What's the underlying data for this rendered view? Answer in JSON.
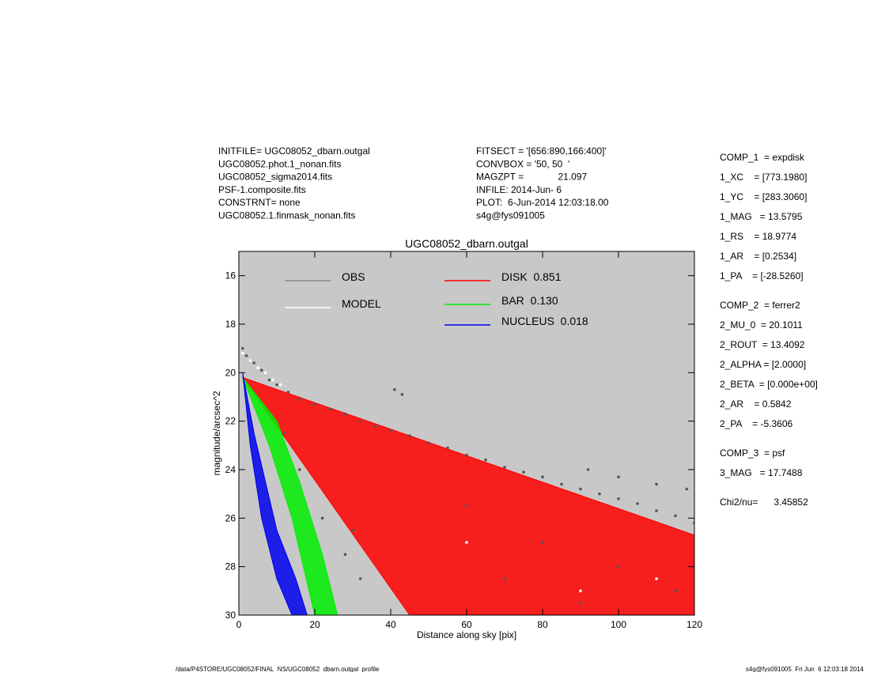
{
  "header": {
    "left": [
      "INITFILE= UGC08052_dbarn.outgal",
      "UGC08052.phot.1_nonan.fits",
      "UGC08052_sigma2014.fits",
      "PSF-1.composite.fits",
      "CONSTRNT= none",
      "UGC08052.1.finmask_nonan.fits"
    ],
    "middle": [
      "FITSECT = '[656:890,166:400]'",
      "CONVBOX = '50, 50  '",
      "MAGZPT =             21.097",
      "INFILE: 2014-Jun- 6",
      "PLOT:  6-Jun-2014 12:03:18.00",
      "s4g@fys091005"
    ]
  },
  "params": [
    [
      "COMP_1  = expdisk",
      "1_XC    = [773.1980]",
      "1_YC    = [283.3060]",
      "1_MAG   = 13.5795",
      "1_RS    = 18.9774",
      "1_AR    = [0.2534]",
      "1_PA    = [-28.5260]"
    ],
    [
      "COMP_2  = ferrer2",
      "2_MU_0  = 20.1011",
      "2_ROUT  = 13.4092",
      "2_ALPHA = [2.0000]",
      "2_BETA  = [0.000e+00]",
      "2_AR    = 0.5842",
      "2_PA    = -5.3606"
    ],
    [
      "COMP_3  = psf",
      "3_MAG   = 17.7488"
    ],
    [
      "Chi2/nu=      3.45852"
    ]
  ],
  "footer": {
    "left": "/data/P4STORE/UGC08052/FINAL_NS/UGC08052_dbarn.outgal_profile",
    "right": "s4g@fys091005  Fri Jun  6 12:03:18 2014"
  },
  "chart_data": {
    "type": "scatter",
    "title": "UGC08052_dbarn.outgal",
    "x_label": "Distance along sky [pix]",
    "y_label": "magnitude/arcsec^2",
    "xlim": [
      0,
      120
    ],
    "ylim": [
      30,
      15
    ],
    "xticks": [
      0,
      20,
      40,
      60,
      80,
      100,
      120
    ],
    "yticks": [
      16,
      18,
      20,
      22,
      24,
      26,
      28,
      30
    ],
    "background": "#c8c8c8",
    "series": [
      {
        "name": "OBS",
        "color": "#555555",
        "kind": "points",
        "x": [
          1,
          2,
          4,
          6,
          8,
          10,
          13,
          16,
          20,
          24,
          28,
          32,
          36,
          40,
          41,
          43,
          45,
          50,
          55,
          60,
          65,
          70,
          75,
          80,
          85,
          90,
          95,
          100,
          105,
          110,
          115,
          120,
          100,
          110,
          118,
          92,
          12,
          16,
          22,
          28,
          32,
          30,
          60,
          80,
          100,
          115,
          70,
          90
        ],
        "values": [
          19.0,
          19.3,
          19.6,
          19.9,
          20.3,
          20.5,
          20.8,
          21.1,
          21.3,
          21.5,
          21.7,
          22.0,
          22.2,
          22.4,
          20.7,
          20.9,
          22.6,
          22.9,
          23.1,
          23.4,
          23.6,
          23.9,
          24.1,
          24.3,
          24.6,
          24.8,
          25.0,
          25.2,
          25.4,
          25.7,
          25.9,
          26.2,
          24.3,
          24.6,
          24.8,
          24.0,
          22.5,
          24.0,
          26.0,
          27.5,
          28.5,
          26.5,
          25.5,
          27.0,
          28.0,
          29.0,
          28.5,
          29.5
        ]
      },
      {
        "name": "MODEL",
        "color": "#ffffff",
        "kind": "points",
        "x": [
          1,
          3,
          5,
          7,
          9,
          11,
          60,
          90,
          110
        ],
        "values": [
          19.2,
          19.5,
          19.8,
          20.0,
          20.3,
          20.5,
          27.0,
          29.0,
          28.5
        ]
      },
      {
        "name": "DISK  0.851",
        "color": "#ff0000",
        "kind": "area",
        "x": [
          1,
          120,
          120,
          45
        ],
        "values": [
          20.2,
          26.7,
          30,
          30
        ]
      },
      {
        "name": "BAR  0.130",
        "color": "#00ee00",
        "kind": "area",
        "x": [
          1,
          10,
          16,
          22,
          26,
          20,
          14,
          8
        ],
        "values": [
          20.2,
          22,
          24.5,
          27.5,
          30,
          30,
          26,
          23
        ]
      },
      {
        "name": "NUCLEUS  0.018",
        "color": "#0000ee",
        "kind": "area",
        "x": [
          1,
          4,
          10,
          15,
          18,
          14,
          10,
          6,
          3
        ],
        "values": [
          20,
          22.5,
          26.5,
          28.5,
          30,
          30,
          28.5,
          26,
          23
        ]
      }
    ]
  }
}
